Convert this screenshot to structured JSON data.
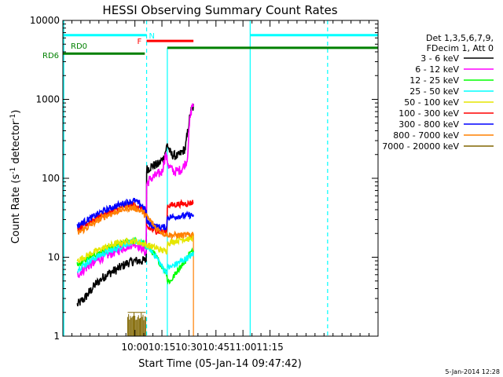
{
  "chart_data": {
    "type": "line",
    "title": "HESSI Observing Summary Count Rates",
    "xlabel": "Start Time (05-Jan-14 09:47:42)",
    "ylabel": "Count Rate (s⁻¹ detector⁻¹)",
    "ylabel_main": "Count Rate (s",
    "ylabel_sup1": "-1",
    "ylabel_mid": " detector",
    "ylabel_sup2": "-1",
    "ylabel_end": ")",
    "y_scale": "log",
    "ylim": [
      1,
      10000
    ],
    "y_ticks": [
      {
        "value": 1,
        "label": "1"
      },
      {
        "value": 10,
        "label": "10"
      },
      {
        "value": 100,
        "label": "100"
      },
      {
        "value": 1000,
        "label": "1000"
      },
      {
        "value": 10000,
        "label": "10000"
      }
    ],
    "xlim_minutes": [
      560,
      735
    ],
    "x_ticks": [
      {
        "minute": 600,
        "label": "10:00"
      },
      {
        "minute": 615,
        "label": "10:15"
      },
      {
        "minute": 630,
        "label": "10:30"
      },
      {
        "minute": 645,
        "label": "10:45"
      },
      {
        "minute": 660,
        "label": "11:00"
      },
      {
        "minute": 675,
        "label": "11:15"
      }
    ],
    "footer_date": "5-Jan-2014 12:28",
    "legend": {
      "placement": "right",
      "header1": "Det 1,3,5,6,7,9,",
      "header2": "FDecim 1, Att 0"
    },
    "series": [
      {
        "name": "3 - 6 keV",
        "color": "#000000",
        "x": [
          568,
          572,
          578,
          584,
          590,
          596,
          600,
          604,
          606.4,
          606.5,
          610,
          613,
          616,
          618,
          620,
          624,
          628,
          630,
          631,
          632.5
        ],
        "y": [
          2.5,
          3,
          4.5,
          6,
          7,
          8.5,
          9,
          9,
          9,
          130,
          145,
          150,
          180,
          270,
          200,
          190,
          240,
          500,
          700,
          800
        ]
      },
      {
        "name": "6 - 12 keV",
        "color": "#ff00ff",
        "x": [
          568,
          575,
          582,
          590,
          596,
          600,
          604,
          606.4,
          606.5,
          609,
          612,
          615,
          617,
          619,
          622,
          626,
          629,
          630.5,
          632,
          632.5
        ],
        "y": [
          6,
          8,
          10,
          12,
          14,
          15,
          13,
          11,
          85,
          100,
          110,
          120,
          200,
          140,
          120,
          130,
          170,
          550,
          900,
          800
        ]
      },
      {
        "name": "12 - 25 keV",
        "color": "#00ff00",
        "x": [
          568,
          575,
          582,
          590,
          596,
          600,
          604,
          608,
          612,
          616,
          617.9,
          618,
          620,
          624,
          628,
          630,
          632.5
        ],
        "y": [
          8,
          10,
          12,
          14,
          16,
          16,
          15,
          13,
          10,
          7,
          6.5,
          5,
          5,
          7,
          9,
          11,
          12
        ]
      },
      {
        "name": "25 - 50 keV",
        "color": "#00ffff",
        "x": [
          568,
          575,
          582,
          590,
          596,
          600,
          604,
          608,
          612,
          616,
          617.9,
          618,
          620,
          624,
          628,
          630,
          632.5
        ],
        "y": [
          7,
          9,
          11,
          13,
          15,
          16,
          15,
          13,
          10,
          7,
          6.5,
          7.5,
          7.5,
          8.5,
          9.5,
          10,
          11
        ]
      },
      {
        "name": "50 - 100 keV",
        "color": "#e6e600",
        "x": [
          568,
          575,
          582,
          590,
          596,
          600,
          604,
          608,
          612,
          616,
          617.9,
          618,
          622,
          626,
          630,
          632.5
        ],
        "y": [
          9,
          11,
          13,
          15,
          16,
          16,
          15,
          14,
          13,
          12,
          12,
          15,
          16,
          17,
          17,
          18
        ]
      },
      {
        "name": "100 - 300 keV",
        "color": "#ff0000",
        "x": [
          568,
          575,
          582,
          590,
          596,
          600,
          604,
          606.4,
          606.5,
          610,
          614,
          617.9,
          618,
          624,
          630,
          632.5
        ],
        "y": [
          22,
          28,
          34,
          40,
          45,
          46,
          40,
          33,
          24,
          22,
          21,
          21,
          45,
          47,
          48,
          50
        ]
      },
      {
        "name": "300 - 800 keV",
        "color": "#0000ff",
        "x": [
          568,
          575,
          582,
          590,
          596,
          600,
          604,
          606.4,
          606.5,
          610,
          614,
          617.9,
          618,
          624,
          630,
          632.5
        ],
        "y": [
          25,
          31,
          38,
          45,
          50,
          52,
          45,
          38,
          28,
          25,
          24,
          24,
          32,
          33,
          34,
          34
        ]
      },
      {
        "name": "800 - 7000 keV",
        "color": "#ff8000",
        "x": [
          568,
          575,
          582,
          590,
          596,
          600,
          604,
          608,
          612,
          616,
          620,
          624,
          628,
          630,
          632.5
        ],
        "y": [
          20,
          25,
          32,
          38,
          42,
          42,
          38,
          30,
          23,
          20,
          19,
          19,
          19,
          19,
          20
        ]
      },
      {
        "name": "7000 - 20000 keV",
        "color": "#806600",
        "x": [
          596,
          606
        ],
        "y": [
          2,
          2
        ]
      }
    ],
    "atten_bars": [
      {
        "label": "N",
        "color": "#00ffff",
        "segments": [
          [
            560,
            606.5
          ],
          [
            664,
            735
          ]
        ],
        "level": 6500
      },
      {
        "label": "F",
        "color": "#ff0000",
        "segments": [
          [
            606.5,
            632.5
          ]
        ],
        "level": 5500
      },
      {
        "label": "RD0",
        "color": "#008000",
        "segments": [
          [
            618,
            735
          ]
        ],
        "level": 4500
      },
      {
        "label": "RD6",
        "color": "#008000",
        "segments": [
          [
            560,
            605.5
          ]
        ],
        "level": 3800
      }
    ],
    "vlines": [
      {
        "minute": 560.5,
        "color": "#00ffff",
        "style": "solid"
      },
      {
        "minute": 606.5,
        "color": "#00ffff",
        "style": "dashed"
      },
      {
        "minute": 664,
        "color": "#00ffff",
        "style": "solid"
      },
      {
        "minute": 707,
        "color": "#00ffff",
        "style": "dashed"
      },
      {
        "minute": 618,
        "color": "#00ffff",
        "style": "solid-short"
      },
      {
        "minute": 632.5,
        "color": "#ff8000",
        "style": "drop"
      }
    ],
    "grid": false
  }
}
